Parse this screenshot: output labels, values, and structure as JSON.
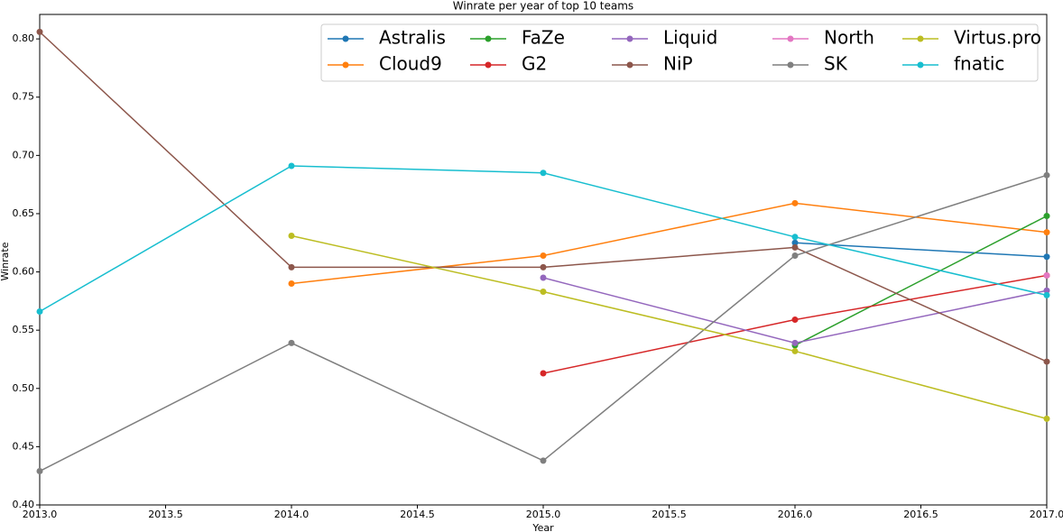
{
  "chart_data": {
    "type": "line",
    "title": "Winrate per year of top 10 teams",
    "x_label": "Year",
    "y_label": "Winrate",
    "x": [
      2013,
      2014,
      2015,
      2016,
      2017
    ],
    "xlim": [
      2013,
      2017
    ],
    "xticks": [
      {
        "value": 2013,
        "label": "2013.0"
      },
      {
        "value": 2013.5,
        "label": "2013.5"
      },
      {
        "value": 2014,
        "label": "2014.0"
      },
      {
        "value": 2014.5,
        "label": "2014.5"
      },
      {
        "value": 2015,
        "label": "2015.0"
      },
      {
        "value": 2015.5,
        "label": "2015.5"
      },
      {
        "value": 2016,
        "label": "2016.0"
      },
      {
        "value": 2016.5,
        "label": "2016.5"
      },
      {
        "value": 2017,
        "label": "2017.0"
      }
    ],
    "ylim": [
      0.4,
      0.821
    ],
    "yticks": [
      {
        "value": 0.4,
        "label": "0.40"
      },
      {
        "value": 0.45,
        "label": "0.45"
      },
      {
        "value": 0.5,
        "label": "0.50"
      },
      {
        "value": 0.55,
        "label": "0.55"
      },
      {
        "value": 0.6,
        "label": "0.60"
      },
      {
        "value": 0.65,
        "label": "0.65"
      },
      {
        "value": 0.7,
        "label": "0.70"
      },
      {
        "value": 0.75,
        "label": "0.75"
      },
      {
        "value": 0.8,
        "label": "0.80"
      }
    ],
    "legend_position": "upper-right",
    "series": [
      {
        "name": "Astralis",
        "color": "#1f77b4",
        "values": [
          null,
          null,
          null,
          0.625,
          0.613
        ]
      },
      {
        "name": "Cloud9",
        "color": "#ff7f0e",
        "values": [
          null,
          0.59,
          0.614,
          0.659,
          0.634
        ]
      },
      {
        "name": "FaZe",
        "color": "#2ca02c",
        "values": [
          null,
          null,
          null,
          0.537,
          0.648
        ]
      },
      {
        "name": "G2",
        "color": "#d62728",
        "values": [
          null,
          null,
          0.513,
          0.559,
          0.597
        ]
      },
      {
        "name": "Liquid",
        "color": "#9467bd",
        "values": [
          null,
          null,
          0.595,
          0.539,
          0.584
        ]
      },
      {
        "name": "NiP",
        "color": "#8c564b",
        "values": [
          0.806,
          0.604,
          0.604,
          0.621,
          0.523
        ]
      },
      {
        "name": "North",
        "color": "#e377c2",
        "values": [
          null,
          null,
          null,
          null,
          0.597
        ]
      },
      {
        "name": "SK",
        "color": "#7f7f7f",
        "values": [
          0.429,
          0.539,
          0.438,
          0.614,
          0.683
        ]
      },
      {
        "name": "Virtus.pro",
        "color": "#bcbd22",
        "values": [
          null,
          0.631,
          0.583,
          0.532,
          0.474
        ]
      },
      {
        "name": "fnatic",
        "color": "#17becf",
        "values": [
          0.566,
          0.691,
          0.685,
          0.63,
          0.58
        ]
      }
    ]
  }
}
